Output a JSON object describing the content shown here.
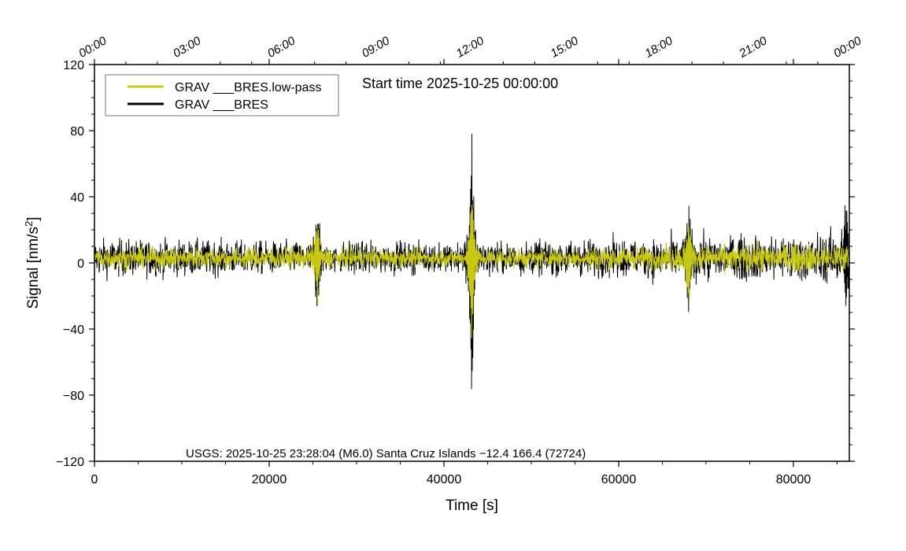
{
  "chart_data": {
    "type": "line",
    "title": "Start time 2025-10-25 00:00:00",
    "xlabel": "Time [s]",
    "ylabel_main": "Signal [nm/s",
    "ylabel_sup": "2",
    "ylabel_tail": "]",
    "xlim": [
      0,
      86400
    ],
    "ylim": [
      -120,
      120
    ],
    "x_ticks": [
      {
        "value": 0,
        "label": "0"
      },
      {
        "value": 20000,
        "label": "20000"
      },
      {
        "value": 40000,
        "label": "40000"
      },
      {
        "value": 60000,
        "label": "60000"
      },
      {
        "value": 80000,
        "label": "80000"
      }
    ],
    "y_ticks": [
      {
        "value": 120,
        "label": "120"
      },
      {
        "value": 80,
        "label": "80"
      },
      {
        "value": 40,
        "label": "40"
      },
      {
        "value": 0,
        "label": "0"
      },
      {
        "value": -40,
        "label": "−40"
      },
      {
        "value": -80,
        "label": "−80"
      },
      {
        "value": -120,
        "label": "−120"
      }
    ],
    "top_axis_ticks": [
      {
        "value": 0,
        "label": "00:00"
      },
      {
        "value": 10800,
        "label": "03:00"
      },
      {
        "value": 21600,
        "label": "06:00"
      },
      {
        "value": 32400,
        "label": "09:00"
      },
      {
        "value": 43200,
        "label": "12:00"
      },
      {
        "value": 54000,
        "label": "15:00"
      },
      {
        "value": 64800,
        "label": "18:00"
      },
      {
        "value": 75600,
        "label": "21:00"
      },
      {
        "value": 86400,
        "label": "00:00"
      }
    ],
    "legend_position": "top-left",
    "series": [
      {
        "name": "GRAV ___BRES",
        "color": "#000000",
        "noise_env": [
          [
            0,
            9
          ],
          [
            20000,
            8
          ],
          [
            40000,
            7
          ],
          [
            60000,
            9
          ],
          [
            86400,
            12
          ]
        ],
        "bursts": [
          {
            "t": 25500,
            "peak_max": 38,
            "peak_min": -40
          },
          {
            "t": 43200,
            "peak_max": 74,
            "peak_min": -94
          },
          {
            "t": 68000,
            "peak_max": 34,
            "peak_min": -37
          },
          {
            "t": 86000,
            "peak_max": 38,
            "peak_min": -34
          }
        ]
      },
      {
        "name": "GRAV ___BRES.low-pass",
        "color": "#c8c814",
        "noise_env": [
          [
            0,
            5
          ],
          [
            20000,
            5
          ],
          [
            40000,
            4
          ],
          [
            60000,
            5
          ],
          [
            86400,
            7
          ]
        ],
        "bursts": [
          {
            "t": 25500,
            "peak_max": 28,
            "peak_min": -30
          },
          {
            "t": 43200,
            "peak_max": 52,
            "peak_min": -63
          },
          {
            "t": 68000,
            "peak_max": 30,
            "peak_min": -34
          }
        ]
      }
    ],
    "legend": [
      {
        "label": "GRAV ___BRES.low-pass",
        "color": "#c8c814"
      },
      {
        "label": "GRAV ___BRES",
        "color": "#000000"
      }
    ],
    "annotation": "USGS: 2025-10-25 23:28:04 (M6.0) Santa Cruz Islands −12.4 166.4 (72724)"
  }
}
